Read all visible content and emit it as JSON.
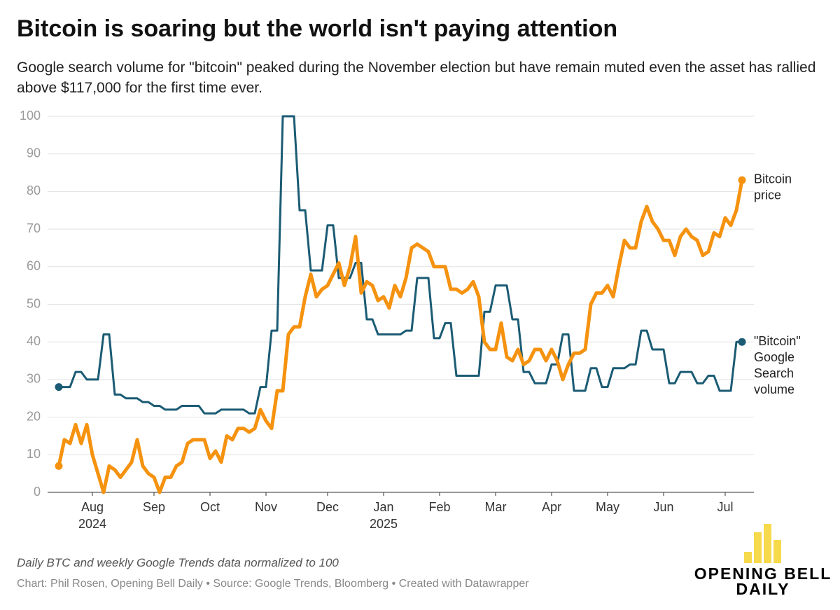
{
  "chart_data": {
    "type": "line",
    "title": "Bitcoin is soaring but the world isn't paying attention",
    "subtitle": "Google search volume for \"bitcoin\" peaked during the November election but have remain muted even the asset has rallied above $117,000 for the first time ever.",
    "note": "Daily BTC and weekly Google Trends data normalized to 100",
    "source": "Chart: Phil Rosen, Opening Bell Daily • Source: Google Trends, Bloomberg • Created with Datawrapper",
    "logo": [
      "OPENING BELL",
      "DAILY"
    ],
    "categories": [
      null,
      null,
      null,
      null,
      null,
      null,
      "Aug\n2024",
      null,
      null,
      null,
      null,
      null,
      null,
      null,
      null,
      null,
      null,
      "Sep",
      null,
      null,
      null,
      null,
      null,
      null,
      null,
      null,
      null,
      "Oct",
      null,
      null,
      null,
      null,
      null,
      null,
      null,
      null,
      null,
      "Nov",
      null,
      null,
      null,
      null,
      null,
      null,
      null,
      null,
      null,
      null,
      "Dec",
      null,
      null,
      null,
      null,
      null,
      null,
      null,
      null,
      null,
      "Jan\n2025",
      null,
      null,
      null,
      null,
      null,
      null,
      null,
      null,
      null,
      "Feb",
      null,
      null,
      null,
      null,
      null,
      null,
      null,
      null,
      null,
      "Mar",
      null,
      null,
      null,
      null,
      null,
      null,
      null,
      null,
      null,
      "Apr",
      null,
      null,
      null,
      null,
      null,
      null,
      null,
      null,
      null,
      "May",
      null,
      null,
      null,
      null,
      null,
      null,
      null,
      null,
      null,
      "Jun",
      null,
      null,
      null,
      null,
      null,
      null,
      null,
      null,
      null,
      null,
      "Jul",
      null,
      null,
      null
    ],
    "series": [
      {
        "name": "Bitcoin\nprice",
        "color": "#f5920f",
        "values": [
          7,
          14,
          13,
          18,
          13,
          18,
          10,
          5,
          0,
          7,
          6,
          4,
          6,
          8,
          14,
          7,
          5,
          4,
          0,
          4,
          4,
          7,
          8,
          13,
          14,
          14,
          14,
          9,
          11,
          8,
          15,
          14,
          17,
          17,
          16,
          17,
          22,
          19,
          17,
          27,
          27,
          42,
          44,
          44,
          52,
          58,
          52,
          54,
          55,
          58,
          61,
          55,
          60,
          68,
          53,
          56,
          55,
          51,
          52,
          49,
          55,
          52,
          57,
          65,
          66,
          65,
          64,
          60,
          60,
          60,
          54,
          54,
          53,
          54,
          56,
          52,
          40,
          38,
          38,
          45,
          36,
          35,
          38,
          34,
          35,
          38,
          38,
          35,
          38,
          35,
          30,
          34,
          37,
          37,
          38,
          50,
          53,
          53,
          55,
          52,
          60,
          67,
          65,
          65,
          72,
          76,
          72,
          70,
          67,
          67,
          63,
          68,
          70,
          68,
          67,
          63,
          64,
          69,
          68,
          73,
          71,
          75,
          83
        ]
      },
      {
        "name": "\"Bitcoin\"\nGoogle\nSearch\nvolume",
        "color": "#1b5b74",
        "values": [
          28,
          28,
          28,
          32,
          32,
          30,
          30,
          30,
          42,
          42,
          26,
          26,
          25,
          25,
          25,
          24,
          24,
          23,
          23,
          22,
          22,
          22,
          23,
          23,
          23,
          23,
          21,
          21,
          21,
          22,
          22,
          22,
          22,
          22,
          21,
          21,
          28,
          28,
          43,
          43,
          100,
          100,
          100,
          75,
          75,
          59,
          59,
          59,
          71,
          71,
          57,
          57,
          57,
          61,
          61,
          46,
          46,
          42,
          42,
          42,
          42,
          42,
          43,
          43,
          57,
          57,
          57,
          41,
          41,
          45,
          45,
          31,
          31,
          31,
          31,
          31,
          48,
          48,
          55,
          55,
          55,
          46,
          46,
          32,
          32,
          29,
          29,
          29,
          34,
          34,
          42,
          42,
          27,
          27,
          27,
          33,
          33,
          28,
          28,
          33,
          33,
          33,
          34,
          34,
          43,
          43,
          38,
          38,
          38,
          29,
          29,
          32,
          32,
          32,
          29,
          29,
          31,
          31,
          27,
          27,
          27,
          40,
          40
        ]
      }
    ],
    "ylim": [
      0,
      100
    ],
    "yticks": [
      0,
      10,
      20,
      30,
      40,
      50,
      60,
      70,
      80,
      90,
      100
    ],
    "grid": true
  }
}
